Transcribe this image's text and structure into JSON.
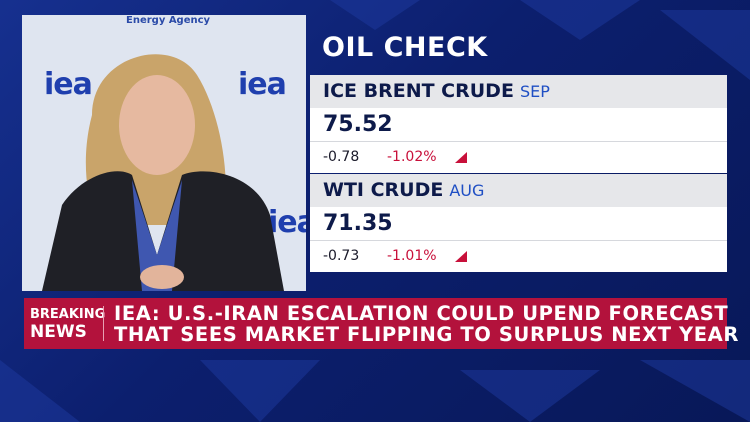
{
  "video": {
    "backdrop_caption": "Energy Agency",
    "logos": [
      "iea",
      "iea",
      "iea"
    ]
  },
  "panel": {
    "title": "OIL CHECK",
    "quotes": [
      {
        "name": "ICE BRENT CRUDE",
        "month": "SEP",
        "price": "75.52",
        "change": "-0.78",
        "percent_change": "-1.02%"
      },
      {
        "name": "WTI CRUDE",
        "month": "AUG",
        "price": "71.35",
        "change": "-0.73",
        "percent_change": "-1.01%"
      }
    ]
  },
  "banner": {
    "badge": [
      "BREAKING",
      "NEWS"
    ],
    "headline": [
      "IEA: U.S.-IRAN ESCALATION COULD UPEND FORECAST",
      "THAT SEES MARKET FLIPPING TO SURPLUS NEXT YEAR"
    ]
  }
}
